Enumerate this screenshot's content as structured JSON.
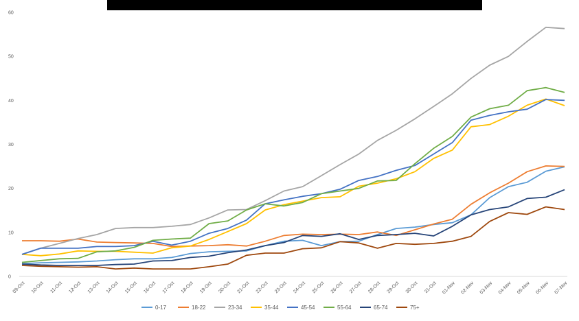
{
  "chart_data": {
    "type": "line",
    "title": "",
    "xlabel": "",
    "ylabel": "",
    "ylim": [
      0,
      60
    ],
    "yticks": [
      0,
      10,
      20,
      30,
      40,
      50,
      60
    ],
    "grid": "none",
    "legend_position": "bottom",
    "categories": [
      "09-Oct",
      "10-Oct",
      "11-Oct",
      "12-Oct",
      "13-Oct",
      "14-Oct",
      "15-Oct",
      "16-Oct",
      "17-Oct",
      "18-Oct",
      "19-Oct",
      "20-Oct",
      "21-Oct",
      "22-Oct",
      "23-Oct",
      "24-Oct",
      "25-Oct",
      "26-Oct",
      "27-Oct",
      "28-Oct",
      "29-Oct",
      "30-Oct",
      "31-Oct",
      "01-Nov",
      "02-Nov",
      "03-Nov",
      "04-Nov",
      "05-Nov",
      "06-Nov",
      "07-Nov"
    ],
    "series": [
      {
        "name": "0-17",
        "color": "#5B9BD5",
        "values": [
          2.9,
          3.1,
          3.2,
          3.3,
          3.5,
          3.8,
          4.0,
          4.0,
          4.3,
          5.2,
          5.6,
          5.7,
          5.8,
          7.0,
          8.0,
          8.2,
          7.0,
          7.9,
          8.0,
          9.5,
          10.9,
          11.2,
          11.8,
          12.2,
          14.0,
          17.9,
          20.4,
          21.4,
          23.9,
          24.9
        ]
      },
      {
        "name": "18-22",
        "color": "#ED7D31",
        "values": [
          8.1,
          8.1,
          8.0,
          8.5,
          7.8,
          7.7,
          7.6,
          7.5,
          6.8,
          6.9,
          7.0,
          7.2,
          6.9,
          8.0,
          9.3,
          9.6,
          9.5,
          9.6,
          9.5,
          10.1,
          9.3,
          10.6,
          11.9,
          13.0,
          16.4,
          19.0,
          21.2,
          23.8,
          25.1,
          25.0
        ]
      },
      {
        "name": "23-34",
        "color": "#A5A5A5",
        "values": [
          5.0,
          6.4,
          7.5,
          8.6,
          9.5,
          10.9,
          11.1,
          11.1,
          11.4,
          11.8,
          13.3,
          15.1,
          15.2,
          17.2,
          19.4,
          20.4,
          22.9,
          25.4,
          27.8,
          30.9,
          33.2,
          35.8,
          38.6,
          41.5,
          45.0,
          48.0,
          50.0,
          53.4,
          56.6,
          56.3
        ]
      },
      {
        "name": "35-44",
        "color": "#FFC000",
        "values": [
          5.0,
          4.7,
          5.1,
          5.8,
          5.7,
          5.7,
          5.5,
          5.3,
          6.5,
          6.9,
          8.4,
          10.2,
          12.0,
          15.1,
          16.3,
          17.1,
          17.9,
          18.1,
          20.5,
          21.2,
          22.2,
          23.8,
          26.8,
          28.7,
          34.0,
          34.5,
          36.4,
          38.9,
          40.3,
          38.8
        ]
      },
      {
        "name": "45-54",
        "color": "#4472C4",
        "values": [
          5.0,
          6.4,
          6.4,
          6.4,
          6.8,
          6.8,
          7.0,
          8.0,
          7.1,
          8.0,
          9.8,
          10.9,
          12.8,
          16.5,
          17.4,
          18.2,
          18.8,
          19.8,
          21.8,
          22.7,
          24.1,
          25.2,
          27.8,
          30.4,
          35.5,
          36.6,
          37.4,
          38.0,
          40.2,
          40.0
        ]
      },
      {
        "name": "55-64",
        "color": "#70AD47",
        "values": [
          3.2,
          3.6,
          4.0,
          4.1,
          5.6,
          5.8,
          6.6,
          8.2,
          8.5,
          8.7,
          12.0,
          12.6,
          15.1,
          16.5,
          16.0,
          16.8,
          18.8,
          19.4,
          20.0,
          21.7,
          21.8,
          25.6,
          29.1,
          31.8,
          36.2,
          38.1,
          38.9,
          42.2,
          42.9,
          41.8
        ]
      },
      {
        "name": "65-74",
        "color": "#264478",
        "values": [
          2.8,
          2.6,
          2.5,
          2.5,
          2.5,
          2.7,
          2.8,
          3.5,
          3.6,
          4.3,
          4.6,
          5.4,
          6.0,
          7.0,
          7.7,
          9.3,
          9.1,
          9.7,
          8.4,
          9.3,
          9.5,
          9.8,
          9.2,
          11.4,
          14.0,
          15.2,
          15.8,
          17.7,
          18.0,
          19.7
        ]
      },
      {
        "name": "75+",
        "color": "#9E480E",
        "values": [
          2.5,
          2.3,
          2.2,
          2.1,
          2.2,
          1.7,
          1.9,
          1.7,
          1.7,
          1.7,
          2.2,
          2.8,
          4.8,
          5.3,
          5.3,
          6.3,
          6.5,
          7.9,
          7.6,
          6.4,
          7.5,
          7.3,
          7.5,
          8.0,
          9.1,
          12.5,
          14.5,
          14.1,
          15.8,
          15.2
        ]
      }
    ]
  }
}
